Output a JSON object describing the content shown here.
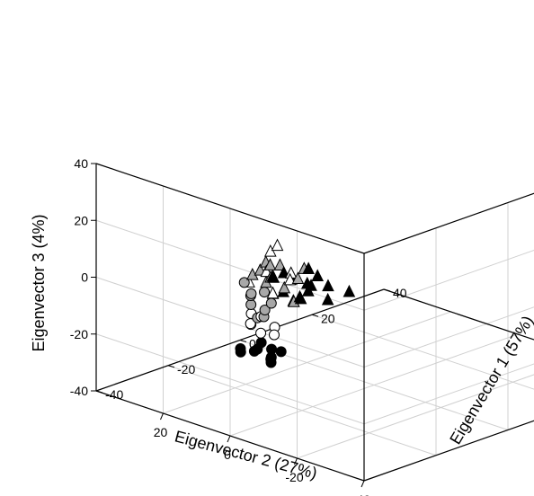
{
  "chart_data": {
    "type": "scatter",
    "projection": "3d",
    "title": "",
    "x_axis": {
      "label": "Eigenvector 1 (57%)",
      "ticks": [
        "-40",
        "-20",
        "0",
        "20",
        "40"
      ],
      "range": [
        -40,
        40
      ]
    },
    "y_axis": {
      "label": "Eigenvector 2 (27%)",
      "ticks": [
        "20",
        "0",
        "-20",
        "-40"
      ],
      "range": [
        -40,
        40
      ]
    },
    "z_axis": {
      "label": "Eigenvector 3 (4%)",
      "ticks": [
        "-40",
        "-20",
        "0",
        "20",
        "40"
      ],
      "range": [
        -40,
        40
      ]
    },
    "grid": true,
    "legend": "none",
    "marker_colors": {
      "black": "#000000",
      "gray": "#a8a8a8",
      "white": "#ffffff"
    },
    "series": [
      {
        "marker": "circle",
        "color": "black",
        "points": [
          [
            -38,
            -10,
            -10
          ],
          [
            -38,
            -6,
            -8
          ],
          [
            -37,
            -4,
            -10
          ],
          [
            -36,
            -8,
            -11
          ],
          [
            -39,
            -2,
            -9
          ],
          [
            -37,
            -12,
            -7
          ],
          [
            -36,
            -5,
            -7
          ],
          [
            -38,
            -1,
            -11
          ],
          [
            -35,
            -7,
            -9
          ],
          [
            -37,
            -9,
            -12
          ]
        ]
      },
      {
        "marker": "circle",
        "color": "white",
        "points": [
          [
            -38,
            -7,
            -2
          ],
          [
            -37,
            -3,
            -1
          ],
          [
            -36,
            -9,
            0
          ],
          [
            -39,
            -5,
            1
          ],
          [
            -38,
            -11,
            -1
          ],
          [
            -37,
            -6,
            3
          ],
          [
            -36,
            -2,
            2
          ]
        ]
      },
      {
        "marker": "circle",
        "color": "gray",
        "points": [
          [
            -38,
            -6,
            3
          ],
          [
            -37,
            -3,
            6
          ],
          [
            -36,
            -8,
            8
          ],
          [
            -38,
            -4,
            10
          ],
          [
            -37,
            -7,
            12
          ],
          [
            -36,
            -2,
            9
          ],
          [
            -39,
            -9,
            5
          ],
          [
            -35,
            -5,
            4
          ],
          [
            -37,
            -1,
            13
          ]
        ]
      },
      {
        "marker": "square",
        "color": "black",
        "points": [
          [
            31,
            -34,
            -1
          ],
          [
            32,
            -32,
            2
          ],
          [
            30,
            -35,
            1
          ],
          [
            33,
            -31,
            -2
          ],
          [
            31,
            -30,
            0
          ],
          [
            32,
            -36,
            3
          ],
          [
            30,
            -33,
            -3
          ],
          [
            33,
            -34,
            1
          ]
        ]
      },
      {
        "marker": "square",
        "color": "white",
        "points": [
          [
            30,
            -32,
            6
          ],
          [
            31,
            -34,
            8
          ],
          [
            32,
            -30,
            9
          ],
          [
            29,
            -33,
            7
          ],
          [
            31,
            -31,
            11
          ],
          [
            30,
            -35,
            10
          ]
        ]
      },
      {
        "marker": "square",
        "color": "gray",
        "points": [
          [
            31,
            -33,
            9
          ],
          [
            32,
            -31,
            12
          ],
          [
            30,
            -30,
            11
          ],
          [
            32,
            -34,
            14
          ],
          [
            31,
            -32,
            16
          ],
          [
            33,
            -32,
            7
          ],
          [
            30,
            -34,
            13
          ]
        ]
      },
      {
        "marker": "triangle",
        "color": "black",
        "points": [
          [
            1,
            28,
            -12
          ],
          [
            3,
            22,
            -15
          ],
          [
            -1,
            26,
            -17
          ],
          [
            4,
            18,
            -14
          ],
          [
            2,
            24,
            -20
          ],
          [
            -2,
            20,
            -16
          ],
          [
            0,
            30,
            -14
          ],
          [
            5,
            25,
            -19
          ],
          [
            3,
            17,
            -18
          ],
          [
            -3,
            27,
            -11
          ],
          [
            1,
            21,
            -13
          ],
          [
            4,
            29,
            -16
          ],
          [
            2,
            19,
            -10
          ],
          [
            -1,
            23,
            -19
          ],
          [
            6,
            26,
            -12
          ],
          [
            8,
            16,
            -17
          ]
        ]
      },
      {
        "marker": "triangle",
        "color": "gray",
        "points": [
          [
            0,
            31,
            -10
          ],
          [
            -3,
            29,
            -14
          ],
          [
            2,
            33,
            -16
          ],
          [
            -1,
            27,
            -8
          ],
          [
            3,
            30,
            -19
          ],
          [
            -4,
            32,
            -12
          ],
          [
            1,
            25,
            -21
          ],
          [
            -2,
            28,
            -18
          ],
          [
            4,
            27,
            -15
          ],
          [
            0,
            34,
            -13
          ],
          [
            -4,
            28,
            -6
          ],
          [
            2,
            23,
            -9
          ]
        ]
      },
      {
        "marker": "triangle",
        "color": "white",
        "points": [
          [
            -2,
            30,
            -11
          ],
          [
            1,
            32,
            -6
          ],
          [
            -4,
            33,
            -15
          ],
          [
            3,
            28,
            -13
          ],
          [
            -1,
            24,
            -12
          ],
          [
            2,
            31,
            -4
          ],
          [
            -3,
            27,
            -17
          ]
        ]
      }
    ]
  }
}
